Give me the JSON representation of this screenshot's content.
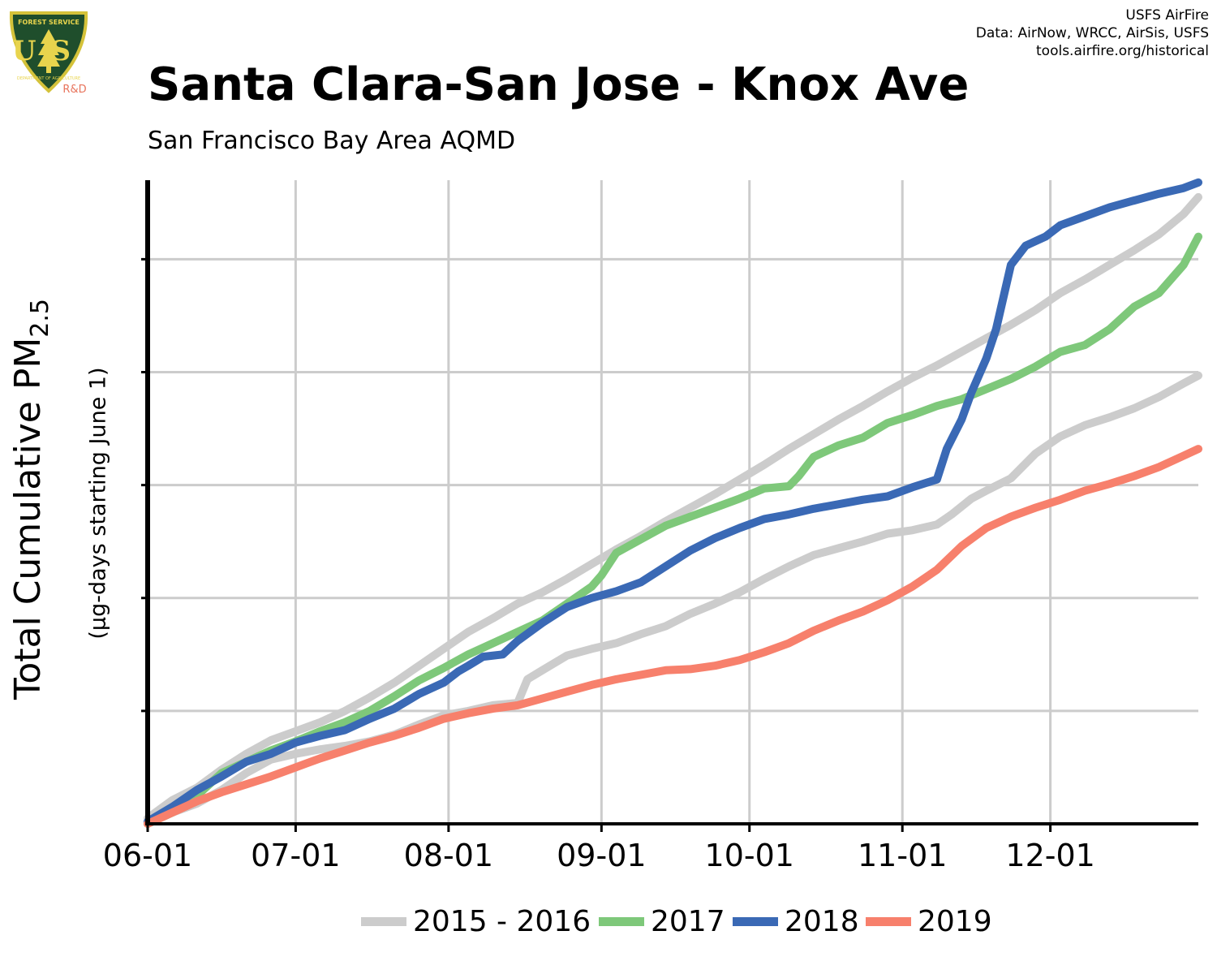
{
  "header": {
    "title": "Santa Clara-San Jose - Knox Ave",
    "subtitle": "San Francisco Bay Area AQMD",
    "credits": [
      "USFS AirFire",
      "Data: AirNow, WRCC, AirSis, USFS",
      "tools.airfire.org/historical"
    ]
  },
  "logo": {
    "top_text": "FOREST SERVICE",
    "main_text": "US",
    "bottom_text": "DEPARTMENT OF AGRICULTURE",
    "badge": "R&D",
    "colors": {
      "shield": "#1f4e2c",
      "border": "#d4c23a",
      "text": "#e8d44d",
      "badge": "#e8745c"
    }
  },
  "chart_data": {
    "type": "line",
    "title": "Santa Clara-San Jose - Knox Ave",
    "subtitle": "San Francisco Bay Area AQMD",
    "ylabel": "Total Cumulative PM",
    "ylabel_subscript": "2.5",
    "ylabel_units": "(µg-days starting June 1)",
    "xlabel": "",
    "x_ticks": [
      "06-01",
      "07-01",
      "08-01",
      "09-01",
      "10-01",
      "11-01",
      "12-01"
    ],
    "x_tick_days": [
      0,
      30,
      61,
      92,
      122,
      153,
      183
    ],
    "xlim": [
      0,
      213
    ],
    "ylim": [
      0,
      5.7
    ],
    "y_gridlines": [
      1,
      2,
      3,
      4,
      5
    ],
    "y_tick_labels_shown": false,
    "grid": true,
    "legend_position": "bottom",
    "series": [
      {
        "name": "2015 - 2016",
        "color": "#cccccc",
        "points": [
          [
            0,
            0.02
          ],
          [
            5,
            0.1
          ],
          [
            10,
            0.18
          ],
          [
            15,
            0.3
          ],
          [
            20,
            0.45
          ],
          [
            25,
            0.57
          ],
          [
            30,
            0.62
          ],
          [
            35,
            0.66
          ],
          [
            40,
            0.69
          ],
          [
            45,
            0.73
          ],
          [
            50,
            0.79
          ],
          [
            55,
            0.88
          ],
          [
            60,
            0.96
          ],
          [
            65,
            1.0
          ],
          [
            70,
            1.05
          ],
          [
            75,
            1.07
          ],
          [
            77,
            1.28
          ],
          [
            80,
            1.36
          ],
          [
            85,
            1.49
          ],
          [
            90,
            1.55
          ],
          [
            95,
            1.6
          ],
          [
            100,
            1.68
          ],
          [
            105,
            1.75
          ],
          [
            110,
            1.86
          ],
          [
            115,
            1.95
          ],
          [
            120,
            2.05
          ],
          [
            125,
            2.17
          ],
          [
            130,
            2.28
          ],
          [
            135,
            2.38
          ],
          [
            140,
            2.44
          ],
          [
            145,
            2.5
          ],
          [
            150,
            2.57
          ],
          [
            155,
            2.6
          ],
          [
            160,
            2.65
          ],
          [
            163,
            2.74
          ],
          [
            167,
            2.88
          ],
          [
            170,
            2.95
          ],
          [
            175,
            3.06
          ],
          [
            180,
            3.28
          ],
          [
            185,
            3.43
          ],
          [
            190,
            3.53
          ],
          [
            195,
            3.6
          ],
          [
            200,
            3.68
          ],
          [
            205,
            3.78
          ],
          [
            210,
            3.9
          ],
          [
            213,
            3.97
          ]
        ]
      },
      {
        "name": "2015 - 2016",
        "color": "#cccccc",
        "points": [
          [
            0,
            0.05
          ],
          [
            5,
            0.21
          ],
          [
            10,
            0.32
          ],
          [
            15,
            0.48
          ],
          [
            20,
            0.62
          ],
          [
            25,
            0.74
          ],
          [
            30,
            0.82
          ],
          [
            35,
            0.9
          ],
          [
            40,
            1.0
          ],
          [
            45,
            1.12
          ],
          [
            50,
            1.25
          ],
          [
            55,
            1.4
          ],
          [
            60,
            1.55
          ],
          [
            65,
            1.7
          ],
          [
            70,
            1.82
          ],
          [
            75,
            1.95
          ],
          [
            80,
            2.05
          ],
          [
            85,
            2.17
          ],
          [
            90,
            2.3
          ],
          [
            95,
            2.43
          ],
          [
            100,
            2.55
          ],
          [
            105,
            2.68
          ],
          [
            110,
            2.8
          ],
          [
            115,
            2.92
          ],
          [
            120,
            3.05
          ],
          [
            125,
            3.18
          ],
          [
            130,
            3.32
          ],
          [
            135,
            3.45
          ],
          [
            140,
            3.58
          ],
          [
            145,
            3.7
          ],
          [
            150,
            3.83
          ],
          [
            155,
            3.95
          ],
          [
            160,
            4.06
          ],
          [
            165,
            4.18
          ],
          [
            170,
            4.3
          ],
          [
            175,
            4.42
          ],
          [
            180,
            4.55
          ],
          [
            185,
            4.7
          ],
          [
            190,
            4.82
          ],
          [
            195,
            4.95
          ],
          [
            200,
            5.08
          ],
          [
            205,
            5.22
          ],
          [
            210,
            5.4
          ],
          [
            213,
            5.55
          ]
        ]
      },
      {
        "name": "2017",
        "color": "#7ec87a",
        "points": [
          [
            0,
            0.0
          ],
          [
            5,
            0.1
          ],
          [
            10,
            0.25
          ],
          [
            15,
            0.45
          ],
          [
            20,
            0.55
          ],
          [
            25,
            0.65
          ],
          [
            30,
            0.73
          ],
          [
            35,
            0.82
          ],
          [
            40,
            0.9
          ],
          [
            45,
            1.0
          ],
          [
            50,
            1.13
          ],
          [
            55,
            1.27
          ],
          [
            60,
            1.38
          ],
          [
            65,
            1.5
          ],
          [
            70,
            1.6
          ],
          [
            75,
            1.7
          ],
          [
            80,
            1.8
          ],
          [
            85,
            1.95
          ],
          [
            90,
            2.1
          ],
          [
            92,
            2.2
          ],
          [
            95,
            2.4
          ],
          [
            100,
            2.52
          ],
          [
            105,
            2.64
          ],
          [
            110,
            2.72
          ],
          [
            115,
            2.8
          ],
          [
            120,
            2.88
          ],
          [
            125,
            2.97
          ],
          [
            130,
            2.99
          ],
          [
            132,
            3.08
          ],
          [
            135,
            3.25
          ],
          [
            140,
            3.35
          ],
          [
            145,
            3.42
          ],
          [
            150,
            3.55
          ],
          [
            155,
            3.62
          ],
          [
            160,
            3.7
          ],
          [
            165,
            3.76
          ],
          [
            170,
            3.85
          ],
          [
            175,
            3.94
          ],
          [
            180,
            4.05
          ],
          [
            185,
            4.18
          ],
          [
            190,
            4.24
          ],
          [
            195,
            4.38
          ],
          [
            200,
            4.58
          ],
          [
            205,
            4.7
          ],
          [
            210,
            4.95
          ],
          [
            213,
            5.2
          ]
        ]
      },
      {
        "name": "2018",
        "color": "#3a69b5",
        "points": [
          [
            0,
            0.02
          ],
          [
            5,
            0.15
          ],
          [
            10,
            0.3
          ],
          [
            15,
            0.42
          ],
          [
            20,
            0.55
          ],
          [
            25,
            0.62
          ],
          [
            30,
            0.72
          ],
          [
            35,
            0.78
          ],
          [
            40,
            0.83
          ],
          [
            45,
            0.93
          ],
          [
            50,
            1.02
          ],
          [
            55,
            1.15
          ],
          [
            60,
            1.25
          ],
          [
            63,
            1.35
          ],
          [
            65,
            1.4
          ],
          [
            68,
            1.48
          ],
          [
            72,
            1.5
          ],
          [
            75,
            1.62
          ],
          [
            80,
            1.78
          ],
          [
            85,
            1.92
          ],
          [
            90,
            2.0
          ],
          [
            95,
            2.06
          ],
          [
            100,
            2.14
          ],
          [
            105,
            2.28
          ],
          [
            110,
            2.42
          ],
          [
            115,
            2.53
          ],
          [
            120,
            2.62
          ],
          [
            125,
            2.7
          ],
          [
            130,
            2.74
          ],
          [
            135,
            2.79
          ],
          [
            140,
            2.83
          ],
          [
            145,
            2.87
          ],
          [
            150,
            2.9
          ],
          [
            155,
            2.98
          ],
          [
            160,
            3.05
          ],
          [
            162,
            3.32
          ],
          [
            165,
            3.58
          ],
          [
            167,
            3.82
          ],
          [
            170,
            4.12
          ],
          [
            172,
            4.38
          ],
          [
            175,
            4.95
          ],
          [
            178,
            5.12
          ],
          [
            182,
            5.2
          ],
          [
            185,
            5.3
          ],
          [
            190,
            5.38
          ],
          [
            195,
            5.46
          ],
          [
            200,
            5.52
          ],
          [
            205,
            5.58
          ],
          [
            210,
            5.63
          ],
          [
            213,
            5.68
          ]
        ]
      },
      {
        "name": "2019",
        "color": "#f7806c",
        "points": [
          [
            0,
            0.0
          ],
          [
            5,
            0.1
          ],
          [
            10,
            0.2
          ],
          [
            15,
            0.28
          ],
          [
            20,
            0.35
          ],
          [
            25,
            0.42
          ],
          [
            30,
            0.5
          ],
          [
            35,
            0.58
          ],
          [
            40,
            0.65
          ],
          [
            45,
            0.72
          ],
          [
            50,
            0.78
          ],
          [
            55,
            0.85
          ],
          [
            60,
            0.93
          ],
          [
            65,
            0.98
          ],
          [
            70,
            1.02
          ],
          [
            75,
            1.05
          ],
          [
            80,
            1.11
          ],
          [
            85,
            1.17
          ],
          [
            90,
            1.23
          ],
          [
            95,
            1.28
          ],
          [
            100,
            1.32
          ],
          [
            105,
            1.36
          ],
          [
            110,
            1.37
          ],
          [
            115,
            1.4
          ],
          [
            120,
            1.45
          ],
          [
            125,
            1.52
          ],
          [
            130,
            1.6
          ],
          [
            135,
            1.71
          ],
          [
            140,
            1.8
          ],
          [
            145,
            1.88
          ],
          [
            150,
            1.98
          ],
          [
            155,
            2.1
          ],
          [
            160,
            2.25
          ],
          [
            165,
            2.46
          ],
          [
            170,
            2.62
          ],
          [
            175,
            2.72
          ],
          [
            180,
            2.8
          ],
          [
            185,
            2.87
          ],
          [
            190,
            2.95
          ],
          [
            195,
            3.01
          ],
          [
            200,
            3.08
          ],
          [
            205,
            3.16
          ],
          [
            210,
            3.26
          ],
          [
            213,
            3.32
          ]
        ]
      }
    ]
  }
}
